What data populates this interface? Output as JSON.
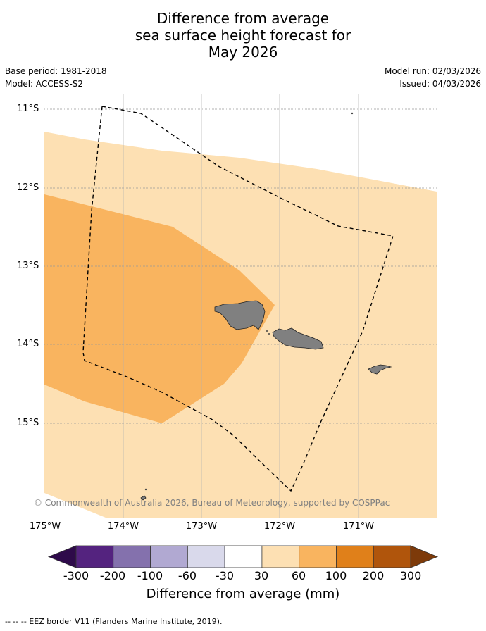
{
  "title_lines": [
    "Difference from average",
    "sea surface height forecast for",
    "May 2026"
  ],
  "meta": {
    "base_period": "Base period: 1981-2018",
    "model": "Model: ACCESS-S2",
    "model_run": "Model run: 02/03/2026",
    "issued": "Issued: 04/03/2026"
  },
  "axes": {
    "lat_labels": [
      "11°S",
      "12°S",
      "13°S",
      "14°S",
      "15°S"
    ],
    "lon_labels": [
      "175°W",
      "174°W",
      "173°W",
      "172°W",
      "171°W"
    ]
  },
  "colorbar": {
    "label": "Difference from average (mm)",
    "ticks": [
      "-300",
      "-200",
      "-100",
      "-60",
      "-30",
      "30",
      "60",
      "100",
      "200",
      "300"
    ],
    "colors": [
      "#2e0a4a",
      "#54237f",
      "#8471ad",
      "#b1a9d2",
      "#d9d9eb",
      "#ffffff",
      "#fde0b3",
      "#f9b45f",
      "#e0801a",
      "#b0550c",
      "#7d3a0a"
    ]
  },
  "map": {
    "colors": {
      "light_orange": "#fde0b3",
      "mid_orange": "#f9b45f",
      "land": "#808080",
      "grid": "#999999"
    }
  },
  "copyright": "© Commonwealth of Australia 2026, Bureau of Meteorology, supported by COSPPac",
  "legend": "--  --  -- EEZ border V11 (Flanders Marine Institute, 2019)."
}
